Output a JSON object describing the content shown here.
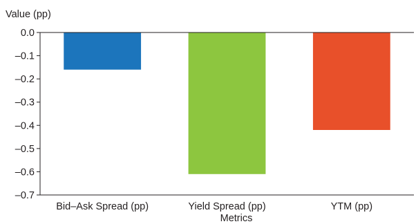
{
  "chart_data": {
    "type": "bar",
    "categories": [
      "Bid–Ask Spread (pp)",
      "Yield Spread (pp)",
      "YTM (pp)"
    ],
    "values": [
      -0.16,
      -0.61,
      -0.42
    ],
    "bar_colors": [
      "#1c75bc",
      "#8dc63f",
      "#e8502a"
    ],
    "xlabel": "Metrics",
    "ylabel": "Value (pp)",
    "ylim": [
      -0.7,
      0.0
    ],
    "yticks": [
      0.0,
      -0.1,
      -0.2,
      -0.3,
      -0.4,
      -0.5,
      -0.6,
      -0.7
    ],
    "ytick_labels": [
      "0.0",
      "–0.1",
      "–0.2",
      "–0.3",
      "–0.4",
      "–0.5",
      "–0.6",
      "–0.7"
    ],
    "grid": false,
    "legend": "none"
  }
}
